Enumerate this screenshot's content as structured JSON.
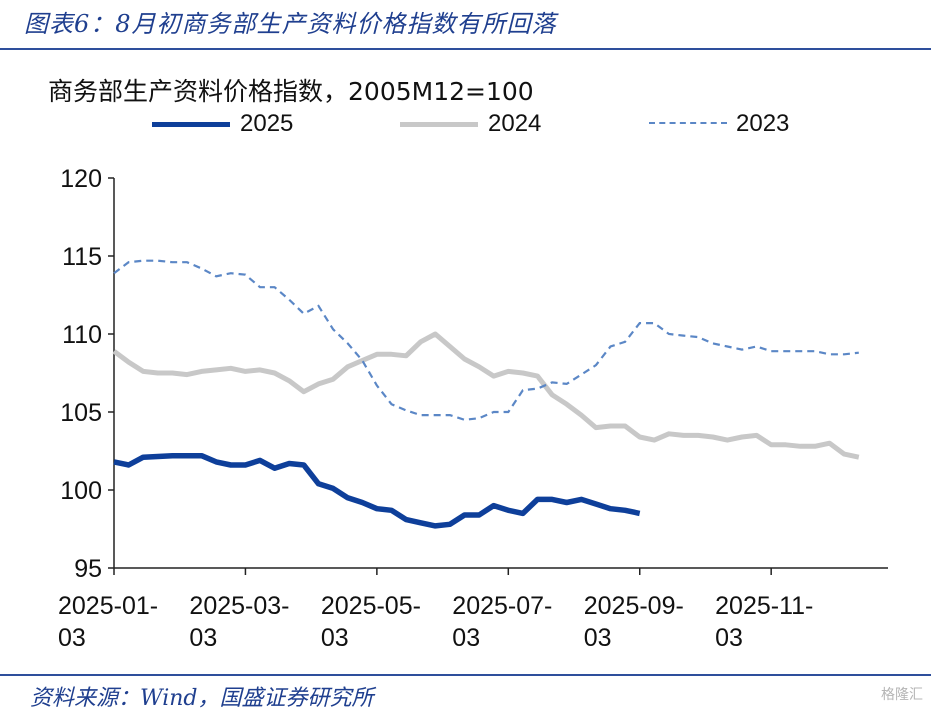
{
  "figure_title": "图表6：8月初商务部生产资料价格指数有所回落",
  "source": "资料来源：Wind，国盛证券研究所",
  "watermark": "格隆汇",
  "colors": {
    "s2025": "#0e3f9a",
    "s2024": "#c8c8c8",
    "s2023": "#5b87c6",
    "rule": "#2e4f9c"
  },
  "chart_data": {
    "type": "line",
    "title": "商务部生产资料价格指数，2005M12=100",
    "xlabel": "",
    "ylabel": "",
    "ylim": [
      95,
      120
    ],
    "yticks": [
      95,
      100,
      105,
      110,
      115,
      120
    ],
    "x_range": [
      0,
      53
    ],
    "xtick_positions": [
      0,
      9,
      18,
      27,
      36,
      45
    ],
    "xtick_labels": [
      [
        "2025-01-",
        "03"
      ],
      [
        "2025-03-",
        "03"
      ],
      [
        "2025-05-",
        "03"
      ],
      [
        "2025-07-",
        "03"
      ],
      [
        "2025-09-",
        "03"
      ],
      [
        "2025-11-",
        "03"
      ]
    ],
    "series": [
      {
        "name": "2025",
        "style": "solid-thick",
        "values": [
          101.8,
          101.6,
          102.1,
          102.15,
          102.2,
          102.2,
          102.2,
          101.8,
          101.6,
          101.6,
          101.9,
          101.4,
          101.7,
          101.6,
          100.4,
          100.1,
          99.5,
          99.2,
          98.8,
          98.7,
          98.1,
          97.9,
          97.7,
          97.8,
          98.4,
          98.4,
          99.0,
          98.7,
          98.5,
          99.4,
          99.4,
          99.2,
          99.4,
          99.1,
          98.8,
          98.7,
          98.5
        ]
      },
      {
        "name": "2024",
        "style": "solid-light",
        "values": [
          108.9,
          108.2,
          107.6,
          107.5,
          107.5,
          107.4,
          107.6,
          107.7,
          107.8,
          107.6,
          107.7,
          107.5,
          107.0,
          106.3,
          106.8,
          107.1,
          107.9,
          108.3,
          108.7,
          108.7,
          108.6,
          109.5,
          110.0,
          109.2,
          108.4,
          107.9,
          107.3,
          107.6,
          107.5,
          107.3,
          106.1,
          105.5,
          104.8,
          104.0,
          104.1,
          104.1,
          103.4,
          103.2,
          103.6,
          103.5,
          103.5,
          103.4,
          103.2,
          103.4,
          103.5,
          102.9,
          102.9,
          102.8,
          102.8,
          103.0,
          102.3,
          102.1
        ]
      },
      {
        "name": "2023",
        "style": "dashed",
        "values": [
          113.9,
          114.6,
          114.7,
          114.7,
          114.6,
          114.6,
          114.2,
          113.7,
          113.9,
          113.8,
          113.0,
          113.0,
          112.2,
          111.3,
          111.8,
          110.3,
          109.4,
          108.3,
          106.7,
          105.5,
          105.1,
          104.8,
          104.8,
          104.8,
          104.5,
          104.6,
          105.0,
          105.0,
          106.4,
          106.5,
          106.9,
          106.8,
          107.4,
          108.0,
          109.2,
          109.5,
          110.7,
          110.7,
          110.0,
          109.9,
          109.8,
          109.4,
          109.2,
          109.0,
          109.2,
          108.9,
          108.9,
          108.9,
          108.9,
          108.7,
          108.7,
          108.8
        ]
      }
    ]
  }
}
